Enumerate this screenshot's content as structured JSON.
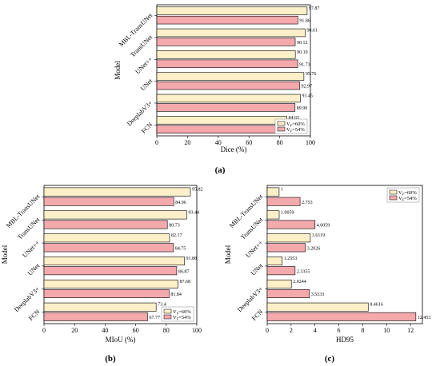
{
  "colors": {
    "series1": "#fdf0c8",
    "series2": "#f4a9ad",
    "edge": "#000000"
  },
  "legend_labels": [
    "V_F=60%",
    "V_F=54%"
  ],
  "chart_data": [
    {
      "type": "bar",
      "orientation": "horizontal",
      "panel_label": "(a)",
      "categories": [
        "MBL-TransUNet",
        "TransUNet",
        "UNet++",
        "UNet",
        "DeeplabV3+",
        "FCN"
      ],
      "series": [
        {
          "name": "V_F=60%",
          "values": [
            97.87,
            96.61,
            90.19,
            95.76,
            93.45,
            84.65
          ]
        },
        {
          "name": "V_F=54%",
          "values": [
            91.86,
            90.12,
            91.73,
            92.97,
            89.99,
            80.78
          ]
        }
      ],
      "value_labels": [
        [
          "97.87",
          "96.61",
          "90.19",
          "95.76",
          "93.45",
          "84.65"
        ],
        [
          "91.86",
          "90.12",
          "91.73",
          "92.97",
          "89.99",
          "80.78"
        ]
      ],
      "xlabel": "Dice (%)",
      "ylabel": "Model",
      "xlim": [
        0,
        100
      ],
      "xticks": [
        "0",
        "20",
        "40",
        "60",
        "80",
        "100"
      ],
      "legend": "bottom-right"
    },
    {
      "type": "bar",
      "orientation": "horizontal",
      "panel_label": "(b)",
      "categories": [
        "MBL-TransUNet",
        "TransUNet",
        "UNet++",
        "UNet",
        "DeeplabV3+",
        "FCN"
      ],
      "series": [
        {
          "name": "V_F=60%",
          "values": [
            95.82,
            93.44,
            82.17,
            91.88,
            87.68,
            73.4
          ]
        },
        {
          "name": "V_F=54%",
          "values": [
            84.96,
            80.73,
            84.75,
            86.87,
            81.84,
            67.77
          ]
        }
      ],
      "value_labels": [
        [
          "95.82",
          "93.44",
          "82.17",
          "91.88",
          "87.68",
          "73.4"
        ],
        [
          "84.96",
          "80.73",
          "84.75",
          "86.87",
          "81.84",
          "67.77"
        ]
      ],
      "xlabel": "MIoU (%)",
      "ylabel": "Model",
      "xlim": [
        0,
        100
      ],
      "xticks": [
        "0",
        "20",
        "40",
        "60",
        "80",
        "100"
      ],
      "legend": "bottom-right"
    },
    {
      "type": "bar",
      "orientation": "horizontal",
      "panel_label": "(c)",
      "categories": [
        "MBL-TransUNet",
        "TransUNet",
        "UNet++",
        "UNet",
        "DeeplabV3+",
        "FCN"
      ],
      "series": [
        {
          "name": "V_F=60%",
          "values": [
            1,
            1.0059,
            3.6119,
            1.2553,
            2.0244,
            8.4616
          ]
        },
        {
          "name": "V_F=54%",
          "values": [
            2.753,
            4.0059,
            3.2026,
            2.3355,
            3.5333,
            12.453
          ]
        }
      ],
      "value_labels": [
        [
          "1",
          "1.0059",
          "3.6119",
          "1.2553",
          "2.0244",
          "8.4616"
        ],
        [
          "2.753",
          "4.0059",
          "3.2026",
          "2.3355",
          "3.5333",
          "12.453"
        ]
      ],
      "xlabel": "HD95",
      "ylabel": "Model",
      "xlim": [
        0,
        13
      ],
      "xticks": [
        "0",
        "2",
        "4",
        "6",
        "8",
        "10",
        "12"
      ],
      "legend": "top-right"
    }
  ]
}
